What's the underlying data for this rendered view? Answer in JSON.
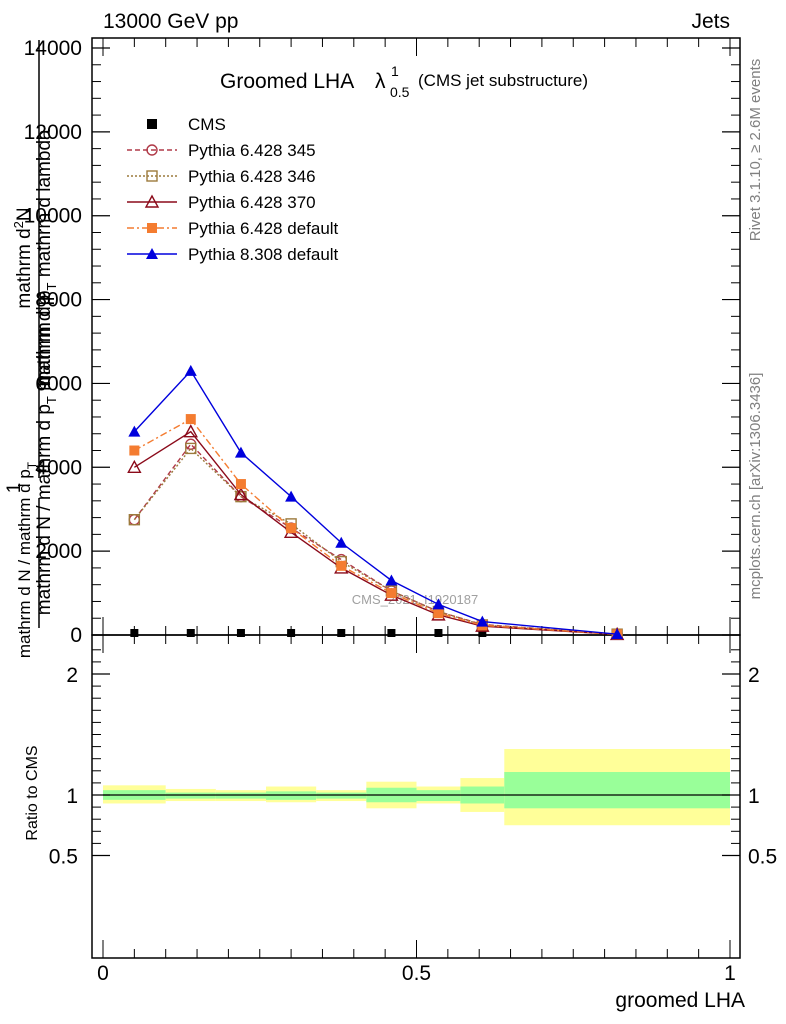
{
  "header": {
    "left": "13000 GeV pp",
    "right": "Jets"
  },
  "title": {
    "main": "Groomed LHA",
    "lambda": "λ",
    "sup": "1",
    "sub": "0.5",
    "suffix": "(CMS jet substructure)"
  },
  "side_labels": {
    "rivet": "Rivet 3.1.10, ≥ 2.6M events",
    "mcplots": "mcplots.cern.ch [arXiv:1306.3436]"
  },
  "watermark": "CMS_2021_I1920187",
  "main_ylabel": {
    "top_num": "mathrm d",
    "top_num_sup": "2",
    "top_num_end": "N",
    "top_den": "mathrm d p",
    "top_den_sub": "T",
    "top_den_end": " mathrm d lambda",
    "one": "1",
    "bottom_num": "mathrm d N / mathrm d p",
    "bottom_num_sub": "T",
    "bottom_num_end": " mathrm d p",
    "bottom_den": "mathrm d N / mathrm d p",
    "bottom_den_sub": "T"
  },
  "ratio_ylabel": "Ratio to CMS",
  "xlabel": "groomed LHA",
  "chart_data": {
    "type": "line",
    "main": {
      "xlim": [
        0,
        1
      ],
      "ylim": [
        0,
        14000
      ],
      "yticks": [
        0,
        2000,
        4000,
        6000,
        8000,
        10000,
        12000,
        14000
      ],
      "ytick_labels": [
        "0",
        "2000",
        "4000",
        "6000",
        "8000",
        "10000",
        "12000",
        "14000"
      ],
      "legend_position": "top-left",
      "series": [
        {
          "name": "CMS",
          "color": "#000000",
          "marker": "square",
          "line": "none",
          "x": [
            0.05,
            0.14,
            0.22,
            0.3,
            0.38,
            0.46,
            0.535,
            0.605,
            0.82
          ],
          "y": [
            0,
            0,
            0,
            0,
            0,
            0,
            0,
            0,
            0
          ]
        },
        {
          "name": "Pythia 6.428 345",
          "color": "#b03a48",
          "marker": "circle-open",
          "line": "dashed",
          "x": [
            0.05,
            0.14,
            0.22,
            0.3,
            0.38,
            0.46,
            0.535,
            0.605,
            0.82
          ],
          "y": [
            2750,
            4550,
            3300,
            2550,
            1800,
            1050,
            560,
            250,
            20
          ]
        },
        {
          "name": "Pythia 6.428 346",
          "color": "#9c7a3c",
          "marker": "square-open",
          "line": "dotted",
          "x": [
            0.05,
            0.14,
            0.22,
            0.3,
            0.38,
            0.46,
            0.535,
            0.605,
            0.82
          ],
          "y": [
            2750,
            4450,
            3300,
            2650,
            1750,
            1050,
            560,
            240,
            20
          ]
        },
        {
          "name": "Pythia 6.428 370",
          "color": "#8b0a1a",
          "marker": "triangle-open",
          "line": "solid",
          "x": [
            0.05,
            0.14,
            0.22,
            0.3,
            0.38,
            0.46,
            0.535,
            0.605,
            0.82
          ],
          "y": [
            4000,
            4850,
            3350,
            2450,
            1600,
            950,
            480,
            210,
            15
          ]
        },
        {
          "name": "Pythia 6.428 default",
          "color": "#f47c30",
          "marker": "square",
          "line": "dashdot",
          "x": [
            0.05,
            0.14,
            0.22,
            0.3,
            0.38,
            0.46,
            0.535,
            0.605,
            0.82
          ],
          "y": [
            4400,
            5150,
            3600,
            2550,
            1650,
            1000,
            520,
            230,
            15
          ]
        },
        {
          "name": "Pythia 8.308 default",
          "color": "#0000dd",
          "marker": "triangle",
          "line": "solid",
          "x": [
            0.05,
            0.14,
            0.22,
            0.3,
            0.38,
            0.46,
            0.535,
            0.605,
            0.82
          ],
          "y": [
            4850,
            6300,
            4350,
            3300,
            2200,
            1300,
            730,
            320,
            20
          ]
        }
      ]
    },
    "ratio": {
      "xlim": [
        0,
        1
      ],
      "ylim": [
        0.35,
        2.35
      ],
      "ytick_labels": [
        "0.5",
        "1",
        "2"
      ],
      "xtick_labels": [
        "0",
        "0.5",
        "1"
      ],
      "reference": 1,
      "bins": [
        {
          "x_from": 0.0,
          "x_to": 0.1,
          "inner": [
            0.96,
            1.04
          ],
          "outer": [
            0.93,
            1.08
          ]
        },
        {
          "x_from": 0.1,
          "x_to": 0.18,
          "inner": [
            0.97,
            1.02
          ],
          "outer": [
            0.95,
            1.05
          ]
        },
        {
          "x_from": 0.18,
          "x_to": 0.26,
          "inner": [
            0.97,
            1.02
          ],
          "outer": [
            0.95,
            1.04
          ]
        },
        {
          "x_from": 0.26,
          "x_to": 0.34,
          "inner": [
            0.96,
            1.03
          ],
          "outer": [
            0.94,
            1.07
          ]
        },
        {
          "x_from": 0.34,
          "x_to": 0.42,
          "inner": [
            0.97,
            1.02
          ],
          "outer": [
            0.95,
            1.04
          ]
        },
        {
          "x_from": 0.42,
          "x_to": 0.5,
          "inner": [
            0.94,
            1.06
          ],
          "outer": [
            0.89,
            1.11
          ]
        },
        {
          "x_from": 0.5,
          "x_to": 0.57,
          "inner": [
            0.95,
            1.04
          ],
          "outer": [
            0.93,
            1.07
          ]
        },
        {
          "x_from": 0.57,
          "x_to": 0.64,
          "inner": [
            0.93,
            1.07
          ],
          "outer": [
            0.86,
            1.14
          ]
        },
        {
          "x_from": 0.64,
          "x_to": 1.0,
          "inner": [
            0.89,
            1.19
          ],
          "outer": [
            0.75,
            1.38
          ]
        }
      ],
      "band_colors": {
        "inner": "#99ff99",
        "outer": "#ffff99"
      }
    }
  }
}
